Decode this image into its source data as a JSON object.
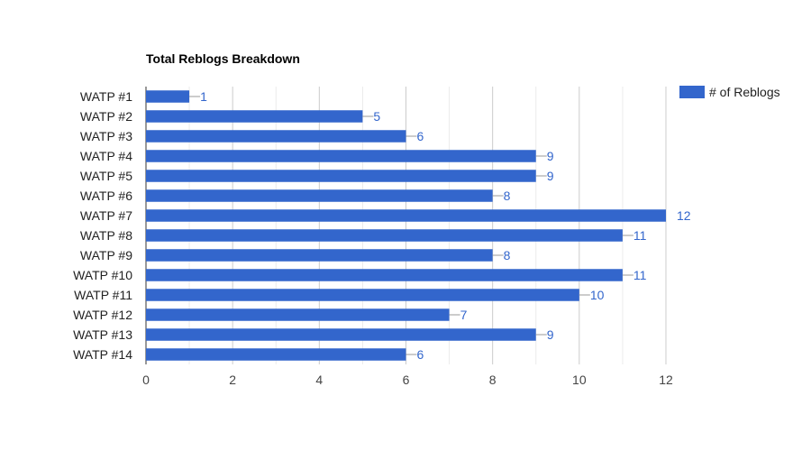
{
  "chart_data": {
    "type": "bar",
    "orientation": "horizontal",
    "title": "Total Reblogs Breakdown",
    "categories": [
      "WATP #1",
      "WATP #2",
      "WATP #3",
      "WATP #4",
      "WATP #5",
      "WATP #6",
      "WATP #7",
      "WATP #8",
      "WATP #9",
      "WATP #10",
      "WATP #11",
      "WATP #12",
      "WATP #13",
      "WATP #14"
    ],
    "series": [
      {
        "name": "# of Reblogs",
        "values": [
          1,
          5,
          6,
          9,
          9,
          8,
          12,
          11,
          8,
          11,
          10,
          7,
          9,
          6
        ],
        "color": "#3366cc"
      }
    ],
    "xlim": [
      0,
      12
    ],
    "x_ticks": [
      0,
      2,
      4,
      6,
      8,
      10,
      12
    ],
    "grid": true,
    "legend_position": "right"
  }
}
